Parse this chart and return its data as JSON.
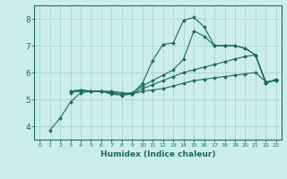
{
  "background_color": "#cceee8",
  "grid_color": "#aad4cc",
  "line_color": "#1a6b5a",
  "xlabel": "Humidex (Indice chaleur)",
  "xlim": [
    -0.5,
    23.5
  ],
  "ylim": [
    3.5,
    8.5
  ],
  "yticks": [
    4,
    5,
    6,
    7,
    8
  ],
  "xticks": [
    0,
    1,
    2,
    3,
    4,
    5,
    6,
    7,
    8,
    9,
    10,
    11,
    12,
    13,
    14,
    15,
    16,
    17,
    18,
    19,
    20,
    21,
    22,
    23
  ],
  "lines": [
    {
      "x": [
        1,
        2,
        3,
        4,
        5,
        6,
        7,
        8,
        9,
        10,
        11,
        12,
        13,
        14,
        15,
        16,
        17,
        18,
        19,
        20,
        21,
        22,
        23
      ],
      "y": [
        3.85,
        4.3,
        4.9,
        5.25,
        5.3,
        5.3,
        5.2,
        5.15,
        5.2,
        5.3,
        5.35,
        5.4,
        5.5,
        5.6,
        5.7,
        5.75,
        5.8,
        5.85,
        5.9,
        5.95,
        6.0,
        5.65,
        5.7
      ]
    },
    {
      "x": [
        3,
        4,
        5,
        6,
        7,
        8,
        9,
        10,
        11,
        12,
        13,
        14,
        15,
        16,
        17,
        18,
        19,
        20,
        21,
        22,
        23
      ],
      "y": [
        5.25,
        5.3,
        5.3,
        5.3,
        5.25,
        5.2,
        5.2,
        5.4,
        5.55,
        5.7,
        5.85,
        6.0,
        6.1,
        6.2,
        6.3,
        6.4,
        6.5,
        6.6,
        6.65,
        5.65,
        5.7
      ]
    },
    {
      "x": [
        3,
        4,
        5,
        6,
        7,
        8,
        9,
        10,
        11,
        12,
        13,
        14,
        15,
        16,
        17,
        18,
        19,
        20,
        21,
        22,
        23
      ],
      "y": [
        5.3,
        5.35,
        5.3,
        5.3,
        5.25,
        5.2,
        5.25,
        5.5,
        5.7,
        5.9,
        6.1,
        6.5,
        7.55,
        7.35,
        7.0,
        7.0,
        7.0,
        6.9,
        6.65,
        5.6,
        5.75
      ]
    },
    {
      "x": [
        3,
        4,
        5,
        6,
        7,
        8,
        9,
        10,
        11,
        12,
        13,
        14,
        15,
        16,
        17,
        18,
        19,
        20,
        21,
        22,
        23
      ],
      "y": [
        5.3,
        5.35,
        5.3,
        5.3,
        5.3,
        5.25,
        5.2,
        5.6,
        6.45,
        7.05,
        7.1,
        7.95,
        8.05,
        7.7,
        7.0,
        7.0,
        7.0,
        6.9,
        6.65,
        5.6,
        5.75
      ]
    }
  ]
}
